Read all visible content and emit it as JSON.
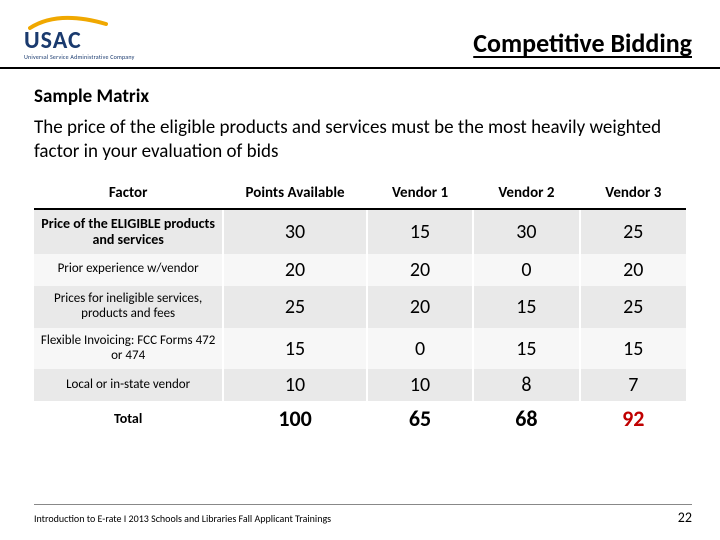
{
  "header": {
    "logo_main": "USAC",
    "logo_sub": "Universal Service Administrative Company",
    "page_title": "Competitive Bidding"
  },
  "subtitle": "Sample Matrix",
  "intro": "The price of the eligible products and services must be the most heavily weighted factor in your evaluation of bids",
  "table": {
    "columns": [
      "Factor",
      "Points Available",
      "Vendor 1",
      "Vendor 2",
      "Vendor 3"
    ],
    "rows": [
      {
        "factor": "Price of the ELIGIBLE products and services",
        "points": 30,
        "v1": 15,
        "v2": 30,
        "v3": 25,
        "band": "odd",
        "bold": true
      },
      {
        "factor": "Prior experience w/vendor",
        "points": 20,
        "v1": 20,
        "v2": 0,
        "v3": 20,
        "band": "even"
      },
      {
        "factor": "Prices for ineligible services, products and fees",
        "points": 25,
        "v1": 20,
        "v2": 15,
        "v3": 25,
        "band": "odd"
      },
      {
        "factor": "Flexible Invoicing: FCC Forms 472 or 474",
        "points": 15,
        "v1": 0,
        "v2": 15,
        "v3": 15,
        "band": "even"
      },
      {
        "factor": "Local or in-state vendor",
        "points": 10,
        "v1": 10,
        "v2": 8,
        "v3": 7,
        "band": "odd"
      }
    ],
    "total": {
      "label": "Total",
      "points": 100,
      "v1": 65,
      "v2": 68,
      "v3": 92,
      "highlight_col": "v3"
    }
  },
  "footer": {
    "text": "Introduction to E-rate  I  2013 Schools and Libraries Fall Applicant Trainings",
    "page": "22"
  },
  "colors": {
    "accent_navy": "#1a3a6e",
    "swoosh_gold": "#f0a800",
    "highlight_red": "#c00000",
    "band_odd": "#e9e9e9",
    "band_even": "#f7f7f7"
  }
}
